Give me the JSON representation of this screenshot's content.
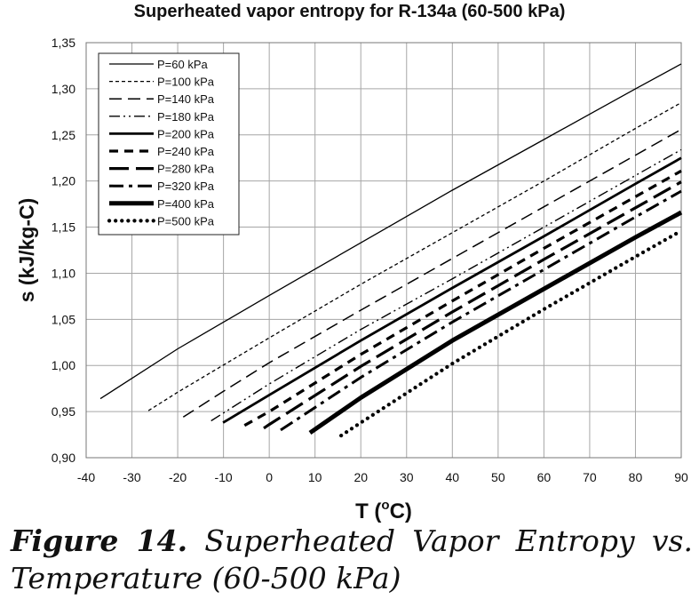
{
  "chart_data": {
    "type": "line",
    "title": "Superheated vapor entropy for R-134a (60-500 kPa)",
    "xlabel": "T (°C)",
    "xlabel_parts": {
      "prefix": "T (",
      "sup": "o",
      "suffix": "C)"
    },
    "ylabel": "s (kJ/kg-C)",
    "xlim": [
      -40,
      90
    ],
    "ylim": [
      0.9,
      1.35
    ],
    "xticks": [
      -40,
      -30,
      -20,
      -10,
      0,
      10,
      20,
      30,
      40,
      50,
      60,
      70,
      80,
      90
    ],
    "xtick_labels": [
      "-40",
      "-30",
      "-20",
      "-10",
      "0",
      "10",
      "20",
      "30",
      "40",
      "50",
      "60",
      "70",
      "80",
      "90"
    ],
    "yticks": [
      0.9,
      0.95,
      1.0,
      1.05,
      1.1,
      1.15,
      1.2,
      1.25,
      1.3,
      1.35
    ],
    "ytick_labels": [
      "0,90",
      "0,95",
      "1,00",
      "1,05",
      "1,10",
      "1,15",
      "1,20",
      "1,25",
      "1,30",
      "1,35"
    ],
    "grid": true,
    "legend_position": "top-left",
    "series": [
      {
        "name": "P=60 kPa",
        "style": "solid-thin",
        "x": [
          -36.9,
          -20,
          0,
          20,
          40,
          60,
          80,
          90
        ],
        "y": [
          0.964,
          1.018,
          1.076,
          1.133,
          1.19,
          1.245,
          1.3,
          1.327
        ]
      },
      {
        "name": "P=100 kPa",
        "style": "dotted-thin",
        "x": [
          -26.4,
          -20,
          0,
          20,
          40,
          60,
          80,
          90
        ],
        "y": [
          0.951,
          0.971,
          1.03,
          1.088,
          1.144,
          1.2,
          1.257,
          1.285
        ]
      },
      {
        "name": "P=140 kPa",
        "style": "dashed-thin",
        "x": [
          -18.8,
          -10,
          0,
          20,
          40,
          60,
          80,
          90
        ],
        "y": [
          0.944,
          0.972,
          1.003,
          1.06,
          1.116,
          1.172,
          1.228,
          1.256
        ]
      },
      {
        "name": "P=180 kPa",
        "style": "dashdotdot-thin",
        "x": [
          -12.7,
          0,
          20,
          40,
          60,
          80,
          90
        ],
        "y": [
          0.94,
          0.98,
          1.039,
          1.094,
          1.15,
          1.206,
          1.234
        ]
      },
      {
        "name": "P=200 kPa",
        "style": "solid-medium",
        "x": [
          -10.1,
          0,
          20,
          40,
          60,
          80,
          90
        ],
        "y": [
          0.938,
          0.968,
          1.027,
          1.084,
          1.14,
          1.197,
          1.225
        ]
      },
      {
        "name": "P=240 kPa",
        "style": "dashed-medium",
        "x": [
          -5.4,
          0,
          20,
          40,
          60,
          80,
          90
        ],
        "y": [
          0.935,
          0.95,
          1.012,
          1.07,
          1.127,
          1.183,
          1.211
        ]
      },
      {
        "name": "P=280 kPa",
        "style": "longdash-medium",
        "x": [
          -1.2,
          0,
          20,
          40,
          60,
          80,
          90
        ],
        "y": [
          0.932,
          0.936,
          0.999,
          1.058,
          1.115,
          1.171,
          1.199
        ]
      },
      {
        "name": "P=320 kPa",
        "style": "dashdot-medium",
        "x": [
          2.5,
          20,
          40,
          60,
          80,
          90
        ],
        "y": [
          0.93,
          0.987,
          1.047,
          1.104,
          1.161,
          1.189
        ]
      },
      {
        "name": "P=400 kPa",
        "style": "solid-thick",
        "x": [
          8.9,
          20,
          40,
          60,
          80,
          90
        ],
        "y": [
          0.927,
          0.965,
          1.027,
          1.083,
          1.139,
          1.166
        ]
      },
      {
        "name": "P=500 kPa",
        "style": "dots-thick",
        "x": [
          15.7,
          20,
          40,
          60,
          80,
          90
        ],
        "y": [
          0.924,
          0.938,
          1.002,
          1.061,
          1.118,
          1.146
        ]
      }
    ]
  },
  "caption": {
    "label": "Figure 14.",
    "text": " Superheated Vapor Entropy vs. Temperature (60-500 kPa)"
  }
}
